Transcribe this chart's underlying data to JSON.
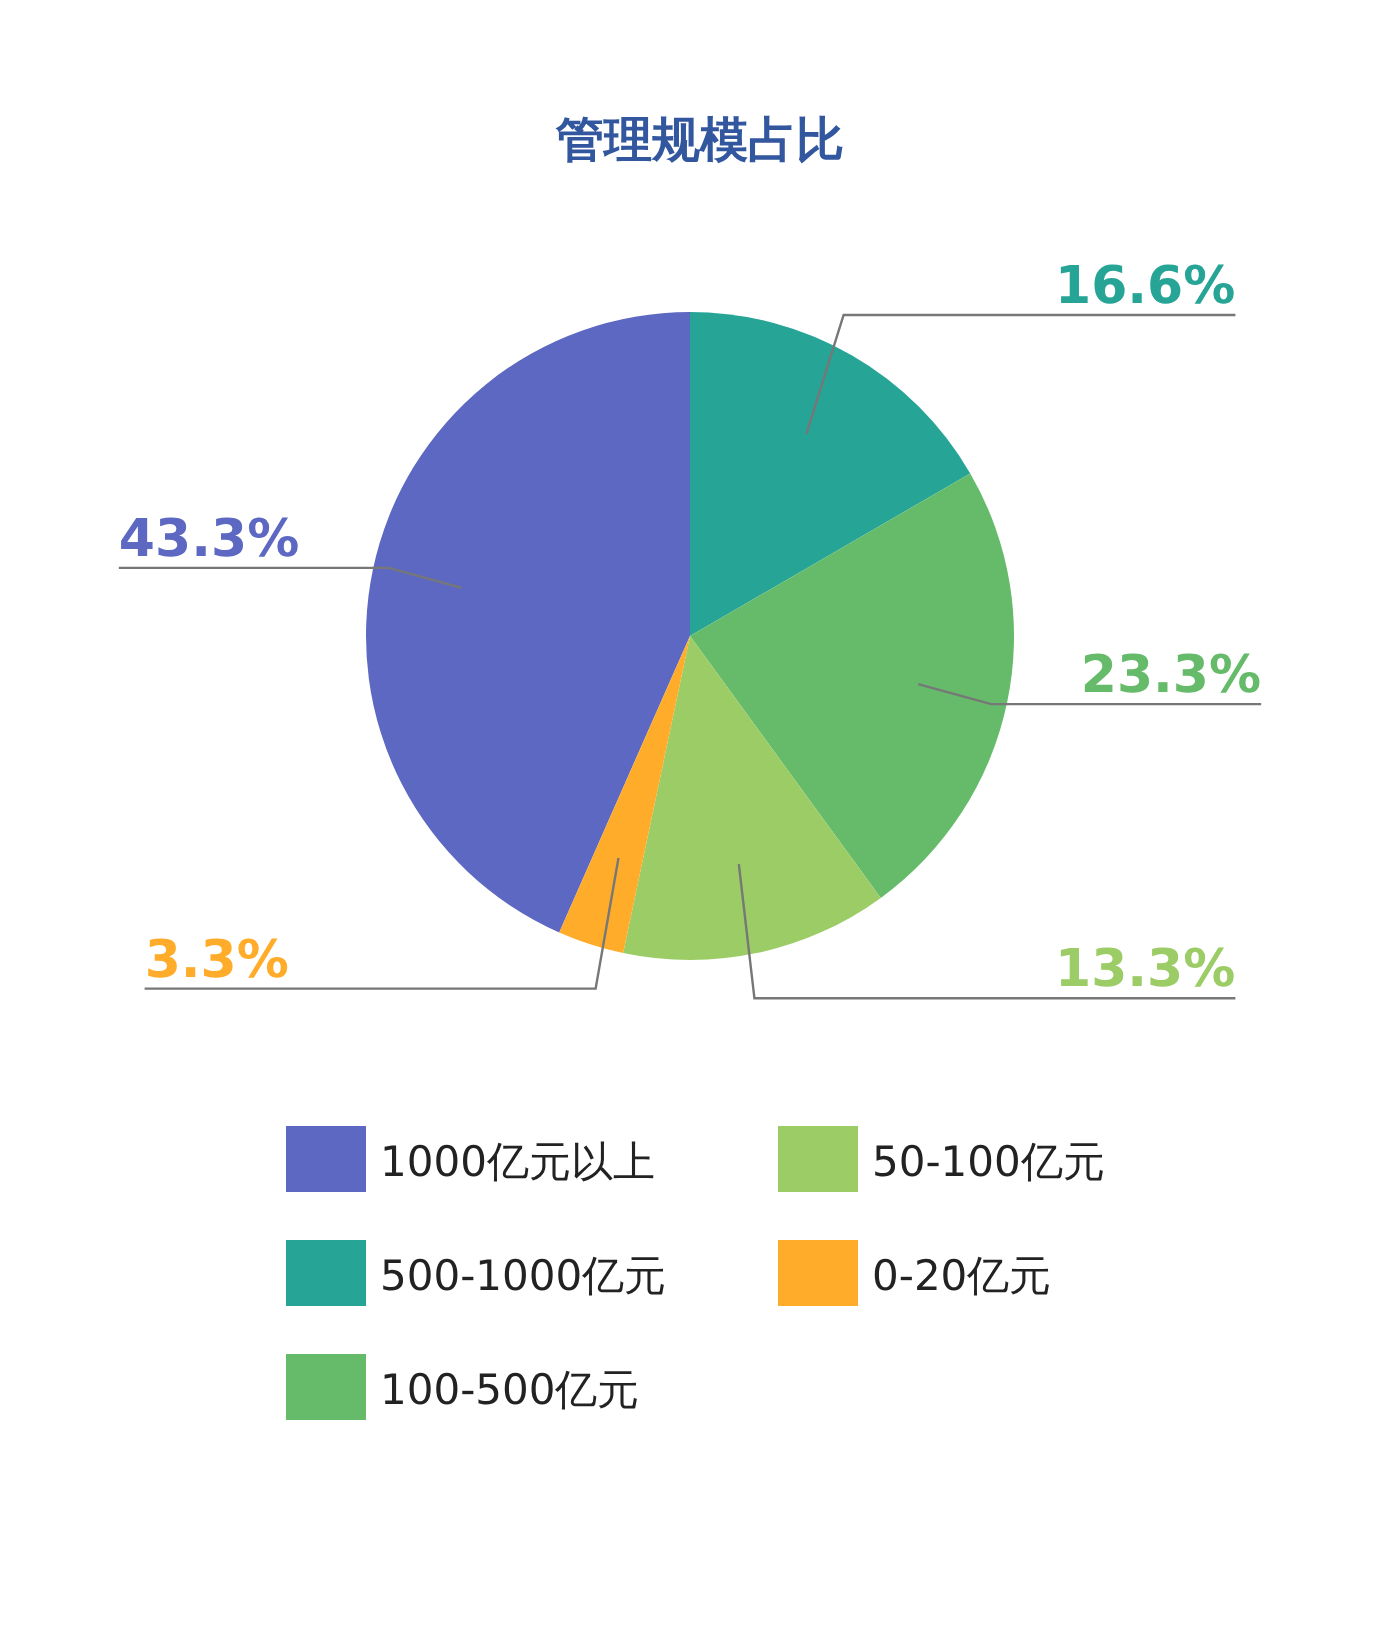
{
  "chart_data": {
    "type": "pie",
    "title": "管理规模占比",
    "categories": [
      "1000亿元以上",
      "500-1000亿元",
      "100-500亿元",
      "50-100亿元",
      "0-20亿元"
    ],
    "values": [
      43.3,
      16.6,
      23.3,
      13.3,
      3.3
    ],
    "colors": [
      "#5c68c2",
      "#26a496",
      "#66bb6a",
      "#9ccc65",
      "#ffac2a"
    ],
    "value_labels": [
      "43.3%",
      "16.6%",
      "23.3%",
      "13.3%",
      "3.3%"
    ],
    "legend": "bottom"
  }
}
